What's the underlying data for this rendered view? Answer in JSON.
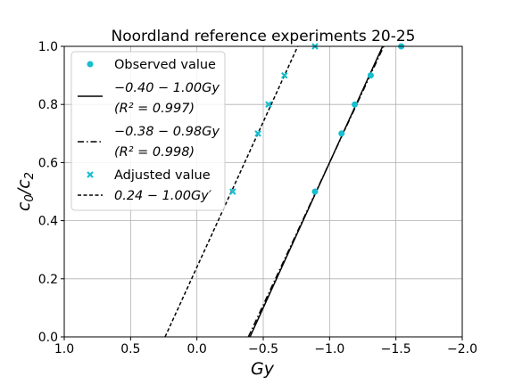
{
  "chart_data": {
    "type": "scatter",
    "title": "Noordland reference experiments 20-25",
    "xlabel": "Gy",
    "ylabel": "c0/c2",
    "xlim": [
      1.0,
      -2.0
    ],
    "ylim": [
      0.0,
      1.0
    ],
    "x_inverted": true,
    "grid": true,
    "legend_position": "top-left",
    "x_ticks": [
      1.0,
      0.5,
      0.0,
      -0.5,
      -1.0,
      -1.5,
      -2.0
    ],
    "x_tick_labels": [
      "1.0",
      "0.5",
      "0.0",
      "−0.5",
      "−1.0",
      "−1.5",
      "−2.0"
    ],
    "y_ticks": [
      0.0,
      0.2,
      0.4,
      0.6,
      0.8,
      1.0
    ],
    "y_tick_labels": [
      "0.0",
      "0.2",
      "0.4",
      "0.6",
      "0.8",
      "1.0"
    ],
    "series": [
      {
        "name": "Observed value",
        "kind": "scatter",
        "marker": "circle",
        "color": "#17becf",
        "points": [
          [
            -0.89,
            0.5
          ],
          [
            -1.09,
            0.7
          ],
          [
            -1.19,
            0.8
          ],
          [
            -1.31,
            0.9
          ],
          [
            -1.54,
            1.0
          ]
        ]
      },
      {
        "name": "−0.40 − 1.00Gy",
        "sub": "(R² = 0.997)",
        "kind": "line",
        "style": "solid",
        "color": "#000000",
        "intercept": -0.4,
        "slope": -1.0
      },
      {
        "name": "−0.38 − 0.98Gy",
        "sub": "(R² = 0.998)",
        "kind": "line",
        "style": "dashdot",
        "color": "#000000",
        "intercept": -0.38,
        "slope": -0.98
      },
      {
        "name": "Adjusted value",
        "kind": "scatter",
        "marker": "x",
        "color": "#17becf",
        "points": [
          [
            -0.27,
            0.5
          ],
          [
            -0.46,
            0.7
          ],
          [
            -0.54,
            0.8
          ],
          [
            -0.66,
            0.9
          ],
          [
            -0.89,
            1.0
          ]
        ]
      },
      {
        "name": "0.24 − 1.00Gy′",
        "kind": "line",
        "style": "dashed",
        "color": "#000000",
        "intercept": 0.24,
        "slope": -1.0
      }
    ]
  }
}
